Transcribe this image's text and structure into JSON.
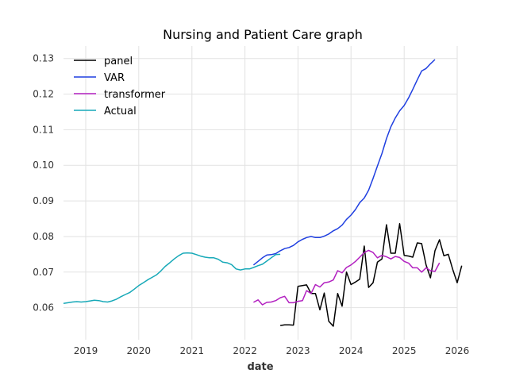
{
  "chart_data": {
    "type": "line",
    "title": "Nursing and Patient Care graph",
    "xlabel": "date",
    "ylabel": "",
    "xlim": [
      "2018-08-01",
      "2026-01-01"
    ],
    "ylim": [
      0.051,
      0.1335
    ],
    "grid": true,
    "legend_position": "top-left",
    "x_ticks": [
      "2019",
      "2020",
      "2021",
      "2022",
      "2023",
      "2024",
      "2025",
      "2026"
    ],
    "y_ticks": [
      "0.06",
      "0.07",
      "0.08",
      "0.09",
      "0.10",
      "0.11",
      "0.12",
      "0.13"
    ],
    "series": [
      {
        "name": "panel",
        "color": "#000000",
        "points": [
          [
            "2022-09-01",
            0.055
          ],
          [
            "2022-10-01",
            0.0552
          ],
          [
            "2022-11-01",
            0.0552
          ],
          [
            "2022-12-01",
            0.0551
          ],
          [
            "2023-01-01",
            0.066
          ],
          [
            "2023-02-01",
            0.0662
          ],
          [
            "2023-03-01",
            0.0664
          ],
          [
            "2023-04-01",
            0.064
          ],
          [
            "2023-05-01",
            0.064
          ],
          [
            "2023-06-01",
            0.0594
          ],
          [
            "2023-07-01",
            0.0641
          ],
          [
            "2023-08-01",
            0.0562
          ],
          [
            "2023-09-01",
            0.0548
          ],
          [
            "2023-10-01",
            0.064
          ],
          [
            "2023-11-01",
            0.0604
          ],
          [
            "2023-12-01",
            0.07
          ],
          [
            "2024-01-01",
            0.0665
          ],
          [
            "2024-02-01",
            0.0672
          ],
          [
            "2024-03-01",
            0.068
          ],
          [
            "2024-04-01",
            0.0773
          ],
          [
            "2024-05-01",
            0.0657
          ],
          [
            "2024-06-01",
            0.067
          ],
          [
            "2024-07-01",
            0.0728
          ],
          [
            "2024-08-01",
            0.0737
          ],
          [
            "2024-09-01",
            0.0833
          ],
          [
            "2024-10-01",
            0.0753
          ],
          [
            "2024-11-01",
            0.0753
          ],
          [
            "2024-12-01",
            0.0836
          ],
          [
            "2025-01-01",
            0.0747
          ],
          [
            "2025-02-01",
            0.0745
          ],
          [
            "2025-03-01",
            0.0742
          ],
          [
            "2025-04-01",
            0.0782
          ],
          [
            "2025-05-01",
            0.078
          ],
          [
            "2025-06-01",
            0.072
          ],
          [
            "2025-07-01",
            0.0684
          ],
          [
            "2025-08-01",
            0.076
          ],
          [
            "2025-09-01",
            0.0791
          ],
          [
            "2025-10-01",
            0.0746
          ],
          [
            "2025-11-01",
            0.075
          ],
          [
            "2025-12-01",
            0.0708
          ],
          [
            "2026-01-01",
            0.067
          ],
          [
            "2026-02-01",
            0.0718
          ]
        ]
      },
      {
        "name": "VAR",
        "color": "#1f3fe0",
        "points": [
          [
            "2022-03-01",
            0.072
          ],
          [
            "2022-04-01",
            0.073
          ],
          [
            "2022-05-01",
            0.074
          ],
          [
            "2022-06-01",
            0.0748
          ],
          [
            "2022-07-01",
            0.0749
          ],
          [
            "2022-08-01",
            0.0752
          ],
          [
            "2022-09-01",
            0.076
          ],
          [
            "2022-10-01",
            0.0766
          ],
          [
            "2022-11-01",
            0.0769
          ],
          [
            "2022-12-01",
            0.0775
          ],
          [
            "2023-01-01",
            0.0785
          ],
          [
            "2023-02-01",
            0.0792
          ],
          [
            "2023-03-01",
            0.0797
          ],
          [
            "2023-04-01",
            0.08
          ],
          [
            "2023-05-01",
            0.0797
          ],
          [
            "2023-06-01",
            0.0797
          ],
          [
            "2023-07-01",
            0.0801
          ],
          [
            "2023-08-01",
            0.0807
          ],
          [
            "2023-09-01",
            0.0816
          ],
          [
            "2023-10-01",
            0.0822
          ],
          [
            "2023-11-01",
            0.0832
          ],
          [
            "2023-12-01",
            0.0848
          ],
          [
            "2024-01-01",
            0.086
          ],
          [
            "2024-02-01",
            0.0876
          ],
          [
            "2024-03-01",
            0.0895
          ],
          [
            "2024-04-01",
            0.0908
          ],
          [
            "2024-05-01",
            0.093
          ],
          [
            "2024-06-01",
            0.0963
          ],
          [
            "2024-07-01",
            0.0998
          ],
          [
            "2024-08-01",
            0.1033
          ],
          [
            "2024-09-01",
            0.1075
          ],
          [
            "2024-10-01",
            0.1108
          ],
          [
            "2024-11-01",
            0.1133
          ],
          [
            "2024-12-01",
            0.1153
          ],
          [
            "2025-01-01",
            0.1168
          ],
          [
            "2025-02-01",
            0.119
          ],
          [
            "2025-03-01",
            0.1213
          ],
          [
            "2025-04-01",
            0.124
          ],
          [
            "2025-05-01",
            0.1265
          ],
          [
            "2025-06-01",
            0.1272
          ],
          [
            "2025-07-01",
            0.1285
          ],
          [
            "2025-08-01",
            0.1297
          ]
        ]
      },
      {
        "name": "transformer",
        "color": "#b220c0",
        "points": [
          [
            "2022-03-01",
            0.0615
          ],
          [
            "2022-04-01",
            0.0622
          ],
          [
            "2022-05-01",
            0.0608
          ],
          [
            "2022-06-01",
            0.0615
          ],
          [
            "2022-07-01",
            0.0616
          ],
          [
            "2022-08-01",
            0.062
          ],
          [
            "2022-09-01",
            0.0628
          ],
          [
            "2022-10-01",
            0.0632
          ],
          [
            "2022-11-01",
            0.0614
          ],
          [
            "2022-12-01",
            0.0614
          ],
          [
            "2023-01-01",
            0.0618
          ],
          [
            "2023-02-01",
            0.062
          ],
          [
            "2023-03-01",
            0.0648
          ],
          [
            "2023-04-01",
            0.064
          ],
          [
            "2023-05-01",
            0.0665
          ],
          [
            "2023-06-01",
            0.0658
          ],
          [
            "2023-07-01",
            0.067
          ],
          [
            "2023-08-01",
            0.0672
          ],
          [
            "2023-09-01",
            0.0678
          ],
          [
            "2023-10-01",
            0.0704
          ],
          [
            "2023-11-01",
            0.0698
          ],
          [
            "2023-12-01",
            0.0713
          ],
          [
            "2024-01-01",
            0.072
          ],
          [
            "2024-02-01",
            0.073
          ],
          [
            "2024-03-01",
            0.0742
          ],
          [
            "2024-04-01",
            0.0755
          ],
          [
            "2024-05-01",
            0.0761
          ],
          [
            "2024-06-01",
            0.0755
          ],
          [
            "2024-07-01",
            0.074
          ],
          [
            "2024-08-01",
            0.0747
          ],
          [
            "2024-09-01",
            0.0743
          ],
          [
            "2024-10-01",
            0.0737
          ],
          [
            "2024-11-01",
            0.0744
          ],
          [
            "2024-12-01",
            0.0741
          ],
          [
            "2025-01-01",
            0.073
          ],
          [
            "2025-02-01",
            0.0725
          ],
          [
            "2025-03-01",
            0.0712
          ],
          [
            "2025-04-01",
            0.0712
          ],
          [
            "2025-05-01",
            0.07
          ],
          [
            "2025-06-01",
            0.0712
          ],
          [
            "2025-07-01",
            0.0704
          ],
          [
            "2025-08-01",
            0.0702
          ],
          [
            "2025-09-01",
            0.0726
          ]
        ]
      },
      {
        "name": "Actual",
        "color": "#17a9b8",
        "points": [
          [
            "2018-08-01",
            0.0612
          ],
          [
            "2018-09-01",
            0.0614
          ],
          [
            "2018-10-01",
            0.0616
          ],
          [
            "2018-11-01",
            0.0617
          ],
          [
            "2018-12-01",
            0.0616
          ],
          [
            "2019-01-01",
            0.0617
          ],
          [
            "2019-02-01",
            0.0619
          ],
          [
            "2019-03-01",
            0.0621
          ],
          [
            "2019-04-01",
            0.062
          ],
          [
            "2019-05-01",
            0.0617
          ],
          [
            "2019-06-01",
            0.0616
          ],
          [
            "2019-07-01",
            0.0619
          ],
          [
            "2019-08-01",
            0.0624
          ],
          [
            "2019-09-01",
            0.0631
          ],
          [
            "2019-10-01",
            0.0637
          ],
          [
            "2019-11-01",
            0.0643
          ],
          [
            "2019-12-01",
            0.0652
          ],
          [
            "2020-01-01",
            0.0662
          ],
          [
            "2020-02-01",
            0.067
          ],
          [
            "2020-03-01",
            0.0678
          ],
          [
            "2020-04-01",
            0.0685
          ],
          [
            "2020-05-01",
            0.0692
          ],
          [
            "2020-06-01",
            0.0703
          ],
          [
            "2020-07-01",
            0.0716
          ],
          [
            "2020-08-01",
            0.0726
          ],
          [
            "2020-09-01",
            0.0737
          ],
          [
            "2020-10-01",
            0.0746
          ],
          [
            "2020-11-01",
            0.0753
          ],
          [
            "2020-12-01",
            0.0754
          ],
          [
            "2021-01-01",
            0.0753
          ],
          [
            "2021-02-01",
            0.0749
          ],
          [
            "2021-03-01",
            0.0745
          ],
          [
            "2021-04-01",
            0.0742
          ],
          [
            "2021-05-01",
            0.074
          ],
          [
            "2021-06-01",
            0.074
          ],
          [
            "2021-07-01",
            0.0736
          ],
          [
            "2021-08-01",
            0.0728
          ],
          [
            "2021-09-01",
            0.0726
          ],
          [
            "2021-10-01",
            0.0721
          ],
          [
            "2021-11-01",
            0.0709
          ],
          [
            "2021-12-01",
            0.0706
          ],
          [
            "2022-01-01",
            0.0709
          ],
          [
            "2022-02-01",
            0.0709
          ],
          [
            "2022-03-01",
            0.0713
          ],
          [
            "2022-04-01",
            0.0718
          ],
          [
            "2022-05-01",
            0.0722
          ],
          [
            "2022-06-01",
            0.0731
          ],
          [
            "2022-07-01",
            0.074
          ],
          [
            "2022-08-01",
            0.0749
          ],
          [
            "2022-09-01",
            0.075
          ]
        ]
      }
    ]
  }
}
